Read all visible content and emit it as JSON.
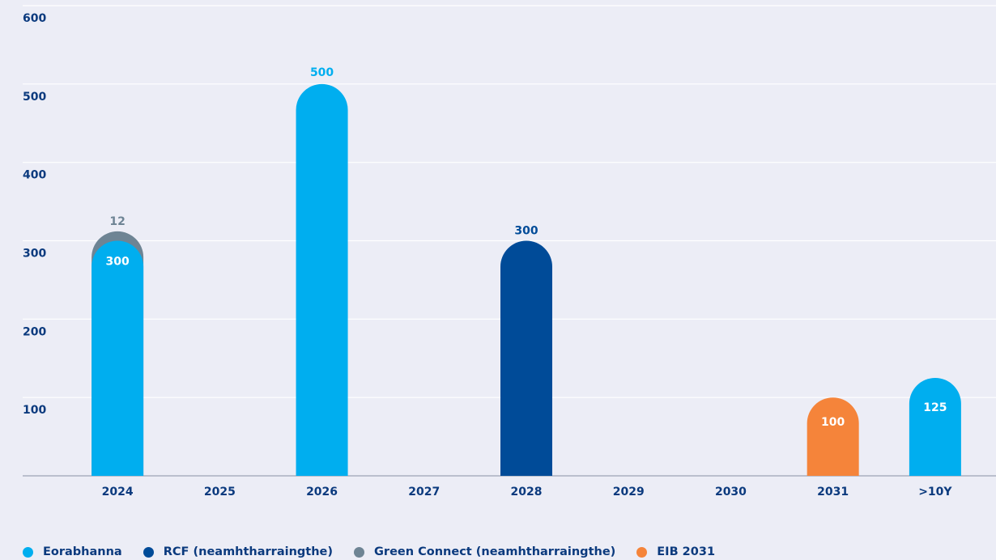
{
  "chart_data": {
    "type": "bar",
    "categories": [
      "2024",
      "2025",
      "2026",
      "2027",
      "2028",
      "2029",
      "2030",
      "2031",
      ">10Y"
    ],
    "ylim": [
      0,
      600
    ],
    "yticks": [
      100,
      200,
      300,
      400,
      500,
      600
    ],
    "grid": true,
    "legend_position": "bottom-left",
    "series": [
      {
        "name": "Eorabhanna",
        "color": "#00aeef",
        "values": [
          300,
          0,
          500,
          0,
          0,
          0,
          0,
          0,
          125
        ]
      },
      {
        "name": "RCF (neamhtharraingthe)",
        "color": "#004b98",
        "values": [
          0,
          0,
          0,
          0,
          300,
          0,
          0,
          0,
          0
        ]
      },
      {
        "name": "Green Connect (neamhtharraingthe)",
        "color": "#6e8494",
        "values": [
          12,
          0,
          0,
          0,
          0,
          0,
          0,
          0,
          0
        ]
      },
      {
        "name": "EIB 2031",
        "color": "#f5843a",
        "values": [
          0,
          0,
          0,
          0,
          0,
          0,
          0,
          100,
          0
        ]
      }
    ]
  }
}
